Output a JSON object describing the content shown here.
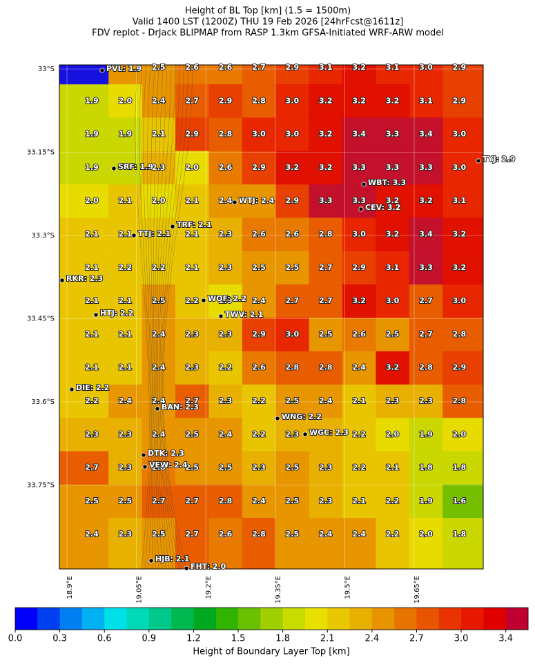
{
  "title": [
    "Height of BL Top [km] (1.5 = 1500m)",
    "Valid 1400 LST (1200Z) THU 19 Feb 2026 [24hrFcst@1611z]",
    "FDV replot - DrJack BLIPMAP from RASP 1.3km GFSA-Initiated WRF-ARW model"
  ],
  "lat_ticks": [
    {
      "value": -33,
      "label": "33°S"
    },
    {
      "value": -33.15,
      "label": "33.15°S"
    },
    {
      "value": -33.3,
      "label": "33.3°S"
    },
    {
      "value": -33.45,
      "label": "33.45°S"
    },
    {
      "value": -33.6,
      "label": "33.6°S"
    },
    {
      "value": -33.75,
      "label": "33.75°S"
    }
  ],
  "lon_ticks": [
    {
      "value": 18.9,
      "label": "18.9°E"
    },
    {
      "value": 19.05,
      "label": "19.05°E"
    },
    {
      "value": 19.2,
      "label": "19.2°E"
    },
    {
      "value": 19.35,
      "label": "19.35°E"
    },
    {
      "value": 19.5,
      "label": "19.5°E"
    },
    {
      "value": 19.65,
      "label": "19.65°E"
    }
  ],
  "grid": {
    "rows": [
      [
        null,
        null,
        "2.5",
        "2.6",
        "2.6",
        "2.7",
        "2.9",
        "3.1",
        "3.2",
        "3.1",
        "3.0",
        "2.9"
      ],
      [
        "1.9",
        "2.0",
        "2.4",
        "2.7",
        "2.9",
        "2.8",
        "3.0",
        "3.2",
        "3.2",
        "3.2",
        "3.1",
        "2.9"
      ],
      [
        "1.9",
        "1.9",
        "2.1",
        "2.9",
        "2.8",
        "3.0",
        "3.0",
        "3.2",
        "3.4",
        "3.3",
        "3.4",
        "3.0"
      ],
      [
        "1.9",
        null,
        "2.3",
        "2.0",
        "2.6",
        "2.9",
        "3.2",
        "3.2",
        "3.3",
        "3.3",
        "3.3",
        "3.0"
      ],
      [
        "2.0",
        "2.1",
        "2.0",
        "2.1",
        "2.4",
        null,
        "2.9",
        "3.3",
        "3.3",
        "3.2",
        "3.2",
        "3.1"
      ],
      [
        "2.1",
        "2.1",
        null,
        "2.1",
        "2.3",
        "2.6",
        "2.6",
        "2.8",
        "3.0",
        "3.2",
        "3.4",
        "3.2"
      ],
      [
        "2.1",
        "2.2",
        "2.2",
        "2.1",
        "2.3",
        "2.5",
        "2.5",
        "2.7",
        "2.9",
        "3.1",
        "3.3",
        "3.2"
      ],
      [
        "2.1",
        "2.1",
        "2.5",
        "2.2",
        "2.0",
        "2.4",
        "2.7",
        "2.7",
        "3.2",
        "3.0",
        "2.7",
        "3.0"
      ],
      [
        "2.1",
        "2.1",
        "2.4",
        "2.3",
        "2.3",
        "2.9",
        "3.0",
        "2.5",
        "2.6",
        "2.5",
        "2.7",
        "2.8"
      ],
      [
        "2.1",
        "2.1",
        "2.4",
        "2.3",
        "2.2",
        "2.6",
        "2.8",
        "2.8",
        "2.4",
        "3.2",
        "2.8",
        "2.9"
      ],
      [
        "2.2",
        "2.4",
        "2.4",
        "2.7",
        "2.3",
        "2.2",
        "2.5",
        "2.4",
        "2.1",
        "2.3",
        "2.3",
        "2.8"
      ],
      [
        "2.3",
        "2.3",
        "2.4",
        "2.5",
        "2.4",
        "2.2",
        "2.3",
        null,
        "2.2",
        "2.0",
        "1.9",
        "2.0"
      ],
      [
        "2.7",
        "2.3",
        "2.6",
        "2.5",
        "2.5",
        "2.3",
        "2.5",
        "2.3",
        "2.2",
        "2.1",
        "1.8",
        "1.8"
      ],
      [
        "2.5",
        "2.5",
        "2.7",
        "2.7",
        "2.8",
        "2.4",
        "2.5",
        "2.3",
        "2.1",
        "2.2",
        "1.9",
        "1.6"
      ],
      [
        "2.4",
        "2.3",
        "2.5",
        "2.7",
        "2.6",
        "2.8",
        "2.5",
        "2.4",
        "2.4",
        "2.2",
        "2.0",
        "1.8"
      ]
    ]
  },
  "stations": [
    "PVL: 1.9",
    "SRF: 1.9",
    "WTJ: 2.4",
    "TRF: 2.1",
    "TTJ: 2.1",
    "RKR: 2.3",
    "WOF: 2.2",
    "TWV: 2.1",
    "HTJ: 2.2",
    "DIE: 2.2",
    "BAN: 2.3",
    "WNG: 2.2",
    "WGC: 2.3",
    "DTK: 2.3",
    "VEW: 2.4",
    "HJB: 2.1",
    "FHT: 2.0",
    "WBT: 3.3",
    "CEV: 3.2",
    "TYJ: 2.9"
  ],
  "colorbar": {
    "label": "Height of Boundary Layer Top [km]",
    "colors": [
      "#0000f8",
      "#0040f0",
      "#0080f0",
      "#00b0f0",
      "#00e0e8",
      "#00d8b8",
      "#00c888",
      "#00b850",
      "#00a820",
      "#30b400",
      "#68c000",
      "#a0d000",
      "#c8dc00",
      "#e8e000",
      "#e8c800",
      "#e8b000",
      "#e89400",
      "#e87400",
      "#e85400",
      "#e83400",
      "#e81800",
      "#e00000",
      "#c00030"
    ],
    "ticks": [
      "0.0",
      "0.3",
      "0.6",
      "0.9",
      "1.2",
      "1.5",
      "1.8",
      "2.1",
      "2.4",
      "2.7",
      "3.0",
      "3.4"
    ]
  }
}
